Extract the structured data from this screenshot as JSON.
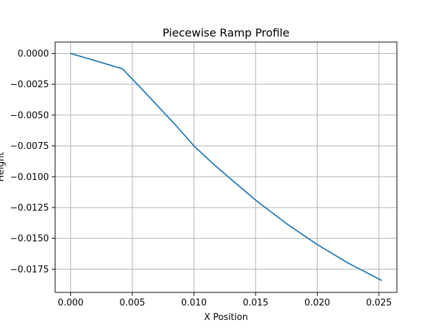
{
  "chart_data": {
    "type": "line",
    "title": "Piecewise Ramp Profile",
    "xlabel": "X Position",
    "ylabel": "Height",
    "xlim": [
      -0.00126,
      0.02646
    ],
    "ylim": [
      -0.01938,
      0.00092
    ],
    "xticks": [
      0.0,
      0.005,
      0.01,
      0.015,
      0.02,
      0.025
    ],
    "xtick_labels": [
      "0.000",
      "0.005",
      "0.010",
      "0.015",
      "0.020",
      "0.025"
    ],
    "yticks": [
      0.0,
      -0.0025,
      -0.005,
      -0.0075,
      -0.01,
      -0.0125,
      -0.015,
      -0.0175
    ],
    "ytick_labels": [
      "0.0000",
      "−0.0025",
      "−0.0050",
      "−0.0075",
      "−0.0100",
      "−0.0125",
      "−0.0150",
      "−0.0175"
    ],
    "grid": true,
    "series": [
      {
        "color": "#1f77b4",
        "x": [
          0.0,
          0.0042,
          0.0055,
          0.007,
          0.0085,
          0.01,
          0.0115,
          0.013,
          0.015,
          0.0175,
          0.02,
          0.0225,
          0.0252
        ],
        "y": [
          0.0,
          -0.00125,
          -0.0026,
          -0.0042,
          -0.0058,
          -0.0075,
          -0.0089,
          -0.0102,
          -0.0119,
          -0.0138,
          -0.0155,
          -0.017,
          -0.0184
        ]
      }
    ]
  }
}
